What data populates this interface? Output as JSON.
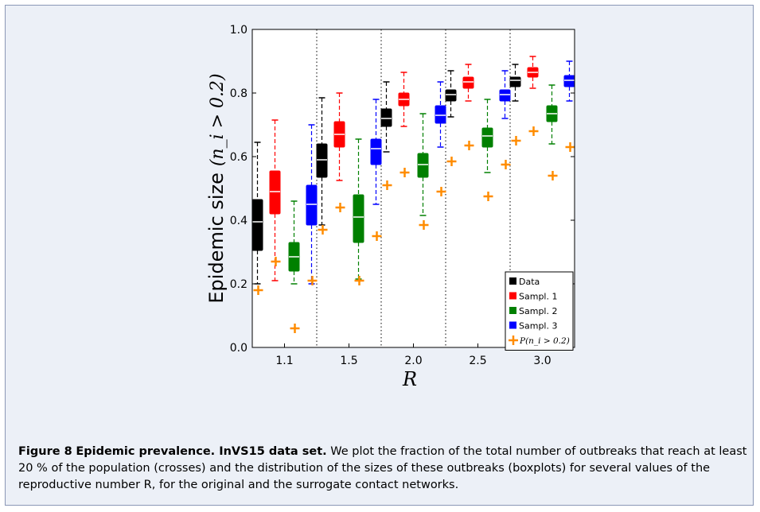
{
  "chart_data": {
    "type": "boxplot",
    "ylabel": "Epidemic size",
    "ylabel_math": "(n_i > 0.2)",
    "xlabel": "R",
    "ylim": [
      0.0,
      1.0
    ],
    "yticks": [
      "0.0",
      "0.2",
      "0.4",
      "0.6",
      "0.8",
      "1.0"
    ],
    "ytick_values": [
      0.0,
      0.2,
      0.4,
      0.6,
      0.8,
      1.0
    ],
    "categories": [
      "1.1",
      "1.5",
      "2.0",
      "2.5",
      "3.0"
    ],
    "legend_position": "lower-right",
    "series": [
      {
        "name": "Data",
        "color": "#000000",
        "boxes": [
          {
            "whislo": 0.2,
            "q1": 0.305,
            "med": 0.395,
            "q3": 0.465,
            "whishi": 0.645
          },
          {
            "whislo": 0.385,
            "q1": 0.535,
            "med": 0.59,
            "q3": 0.64,
            "whishi": 0.785
          },
          {
            "whislo": 0.615,
            "q1": 0.695,
            "med": 0.72,
            "q3": 0.75,
            "whishi": 0.835
          },
          {
            "whislo": 0.725,
            "q1": 0.775,
            "med": 0.795,
            "q3": 0.81,
            "whishi": 0.87
          },
          {
            "whislo": 0.775,
            "q1": 0.82,
            "med": 0.84,
            "q3": 0.85,
            "whishi": 0.89
          }
        ]
      },
      {
        "name": "Sampl. 1",
        "color": "#ff0000",
        "boxes": [
          {
            "whislo": 0.21,
            "q1": 0.42,
            "med": 0.49,
            "q3": 0.555,
            "whishi": 0.715
          },
          {
            "whislo": 0.525,
            "q1": 0.63,
            "med": 0.67,
            "q3": 0.71,
            "whishi": 0.8
          },
          {
            "whislo": 0.695,
            "q1": 0.76,
            "med": 0.78,
            "q3": 0.8,
            "whishi": 0.865
          },
          {
            "whislo": 0.775,
            "q1": 0.815,
            "med": 0.835,
            "q3": 0.85,
            "whishi": 0.89
          },
          {
            "whislo": 0.815,
            "q1": 0.85,
            "med": 0.865,
            "q3": 0.88,
            "whishi": 0.915
          }
        ]
      },
      {
        "name": "Sampl. 2",
        "color": "#008000",
        "boxes": [
          {
            "whislo": 0.2,
            "q1": 0.24,
            "med": 0.285,
            "q3": 0.33,
            "whishi": 0.46
          },
          {
            "whislo": 0.215,
            "q1": 0.33,
            "med": 0.41,
            "q3": 0.48,
            "whishi": 0.655
          },
          {
            "whislo": 0.415,
            "q1": 0.535,
            "med": 0.575,
            "q3": 0.61,
            "whishi": 0.735
          },
          {
            "whislo": 0.55,
            "q1": 0.63,
            "med": 0.665,
            "q3": 0.69,
            "whishi": 0.78
          },
          {
            "whislo": 0.64,
            "q1": 0.71,
            "med": 0.735,
            "q3": 0.76,
            "whishi": 0.825
          }
        ]
      },
      {
        "name": "Sampl. 3",
        "color": "#0000ff",
        "boxes": [
          {
            "whislo": 0.2,
            "q1": 0.385,
            "med": 0.45,
            "q3": 0.51,
            "whishi": 0.7
          },
          {
            "whislo": 0.45,
            "q1": 0.575,
            "med": 0.625,
            "q3": 0.655,
            "whishi": 0.78
          },
          {
            "whislo": 0.63,
            "q1": 0.705,
            "med": 0.73,
            "q3": 0.76,
            "whishi": 0.835
          },
          {
            "whislo": 0.72,
            "q1": 0.775,
            "med": 0.795,
            "q3": 0.81,
            "whishi": 0.87
          },
          {
            "whislo": 0.775,
            "q1": 0.82,
            "med": 0.84,
            "q3": 0.855,
            "whishi": 0.9
          }
        ]
      }
    ],
    "crosses": {
      "name": "P(n_i > 0.2)",
      "color": "#ff8c00",
      "values": [
        [
          0.18,
          0.27,
          0.06,
          0.21
        ],
        [
          0.37,
          0.44,
          0.21,
          0.35
        ],
        [
          0.51,
          0.55,
          0.385,
          0.49
        ],
        [
          0.585,
          0.635,
          0.475,
          0.575
        ],
        [
          0.65,
          0.68,
          0.54,
          0.63
        ]
      ]
    }
  },
  "caption": {
    "label": "Figure 8",
    "title": "Epidemic prevalence. InVS15 data set.",
    "text": " We plot the fraction of the total number of outbreaks that reach at least 20 % of the population (crosses) and the distribution of the sizes of these outbreaks (boxplots) for several values of the reproductive number R, for the original and the surrogate contact networks."
  }
}
